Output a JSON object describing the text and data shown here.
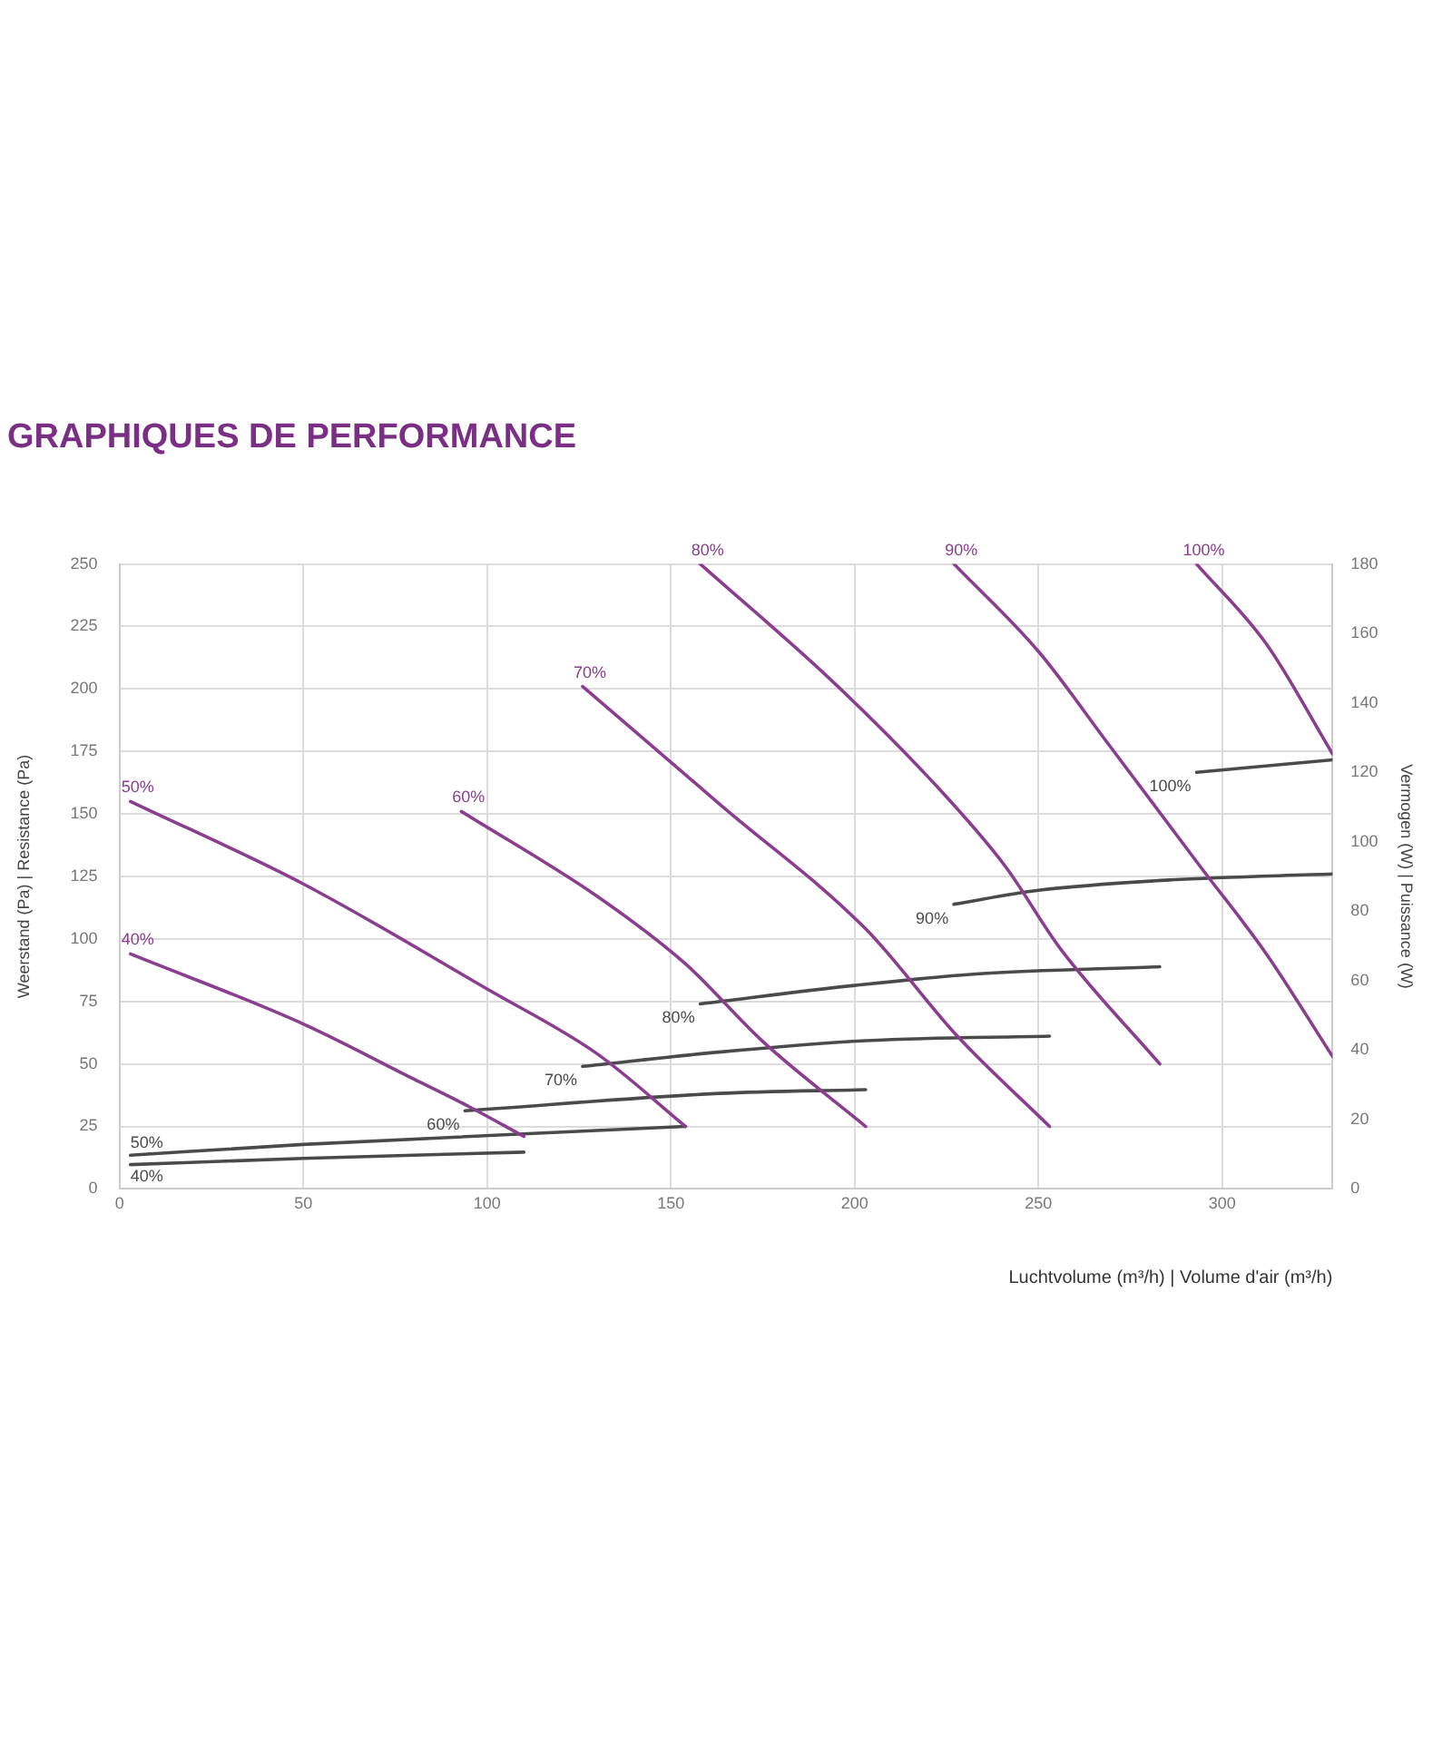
{
  "chart_data": {
    "type": "line",
    "title": "GRAPHIQUES DE PERFORMANCE",
    "xlabel": "Luchtvolume (m³/h) | Volume d'air (m³/h)",
    "ylabel": "Weerstand (Pa) | Resistance (Pa)",
    "y2label": "Vermogen (W) | Puissance (W)",
    "xlim": [
      0,
      330
    ],
    "xticks": [
      0,
      50,
      100,
      150,
      200,
      250,
      300
    ],
    "ylim": [
      0,
      250
    ],
    "yticks": [
      0,
      25,
      50,
      75,
      100,
      125,
      150,
      175,
      200,
      225,
      250
    ],
    "y2lim": [
      0,
      180
    ],
    "y2ticks": [
      0,
      20,
      40,
      60,
      80,
      100,
      120,
      140,
      160,
      180
    ],
    "grid": true,
    "legend": false,
    "marker": "none",
    "line_style": "solid",
    "series": [
      {
        "name": "40%",
        "color": "#8b3d8f",
        "x": [
          3,
          50,
          80,
          95,
          110
        ],
        "values": [
          94,
          66,
          44,
          33,
          21
        ]
      },
      {
        "name": "50%",
        "color": "#8b3d8f",
        "x": [
          3,
          50,
          100,
          130,
          154
        ],
        "values": [
          155,
          122,
          80,
          54,
          25
        ]
      },
      {
        "name": "60%",
        "color": "#8b3d8f",
        "x": [
          93,
          130,
          154,
          175,
          203
        ],
        "values": [
          151,
          117,
          90,
          59,
          25
        ]
      },
      {
        "name": "70%",
        "color": "#8b3d8f",
        "x": [
          126,
          164,
          203,
          228,
          253
        ],
        "values": [
          201,
          153,
          104,
          61,
          25
        ]
      },
      {
        "name": "80%",
        "color": "#8b3d8f",
        "x": [
          158,
          194,
          223,
          241,
          256,
          283
        ],
        "values": [
          250,
          203,
          160,
          129,
          96,
          50
        ]
      },
      {
        "name": "90%",
        "color": "#8b3d8f",
        "x": [
          227,
          250,
          269,
          294,
          312,
          330
        ],
        "values": [
          250,
          215,
          178,
          129,
          94,
          53
        ]
      },
      {
        "name": "100%",
        "color": "#8b3d8f",
        "x": [
          293,
          312,
          330
        ],
        "values": [
          250,
          218,
          174
        ]
      },
      {
        "name": "40%",
        "color": "#4a4a4a",
        "axis": "y2",
        "x": [
          3,
          50,
          110
        ],
        "values": [
          7,
          8.8,
          10.6
        ]
      },
      {
        "name": "50%",
        "color": "#4a4a4a",
        "axis": "y2",
        "x": [
          3,
          50,
          154
        ],
        "values": [
          9.7,
          12.8,
          18
        ]
      },
      {
        "name": "60%",
        "color": "#4a4a4a",
        "axis": "y2",
        "x": [
          94,
          163,
          203
        ],
        "values": [
          22.5,
          27.5,
          28.6
        ]
      },
      {
        "name": "70%",
        "color": "#4a4a4a",
        "axis": "y2",
        "x": [
          126,
          163,
          203,
          253
        ],
        "values": [
          35.3,
          39.4,
          42.7,
          44
        ]
      },
      {
        "name": "80%",
        "color": "#4a4a4a",
        "axis": "y2",
        "x": [
          158,
          200,
          233,
          283
        ],
        "values": [
          53.3,
          58.6,
          61.9,
          64
        ]
      },
      {
        "name": "90%",
        "color": "#4a4a4a",
        "axis": "y2",
        "x": [
          227,
          250,
          286,
          330
        ],
        "values": [
          82,
          86,
          89,
          90.7
        ]
      },
      {
        "name": "100%",
        "color": "#4a4a4a",
        "axis": "y2",
        "x": [
          293,
          330
        ],
        "values": [
          120,
          123.6
        ]
      }
    ]
  }
}
